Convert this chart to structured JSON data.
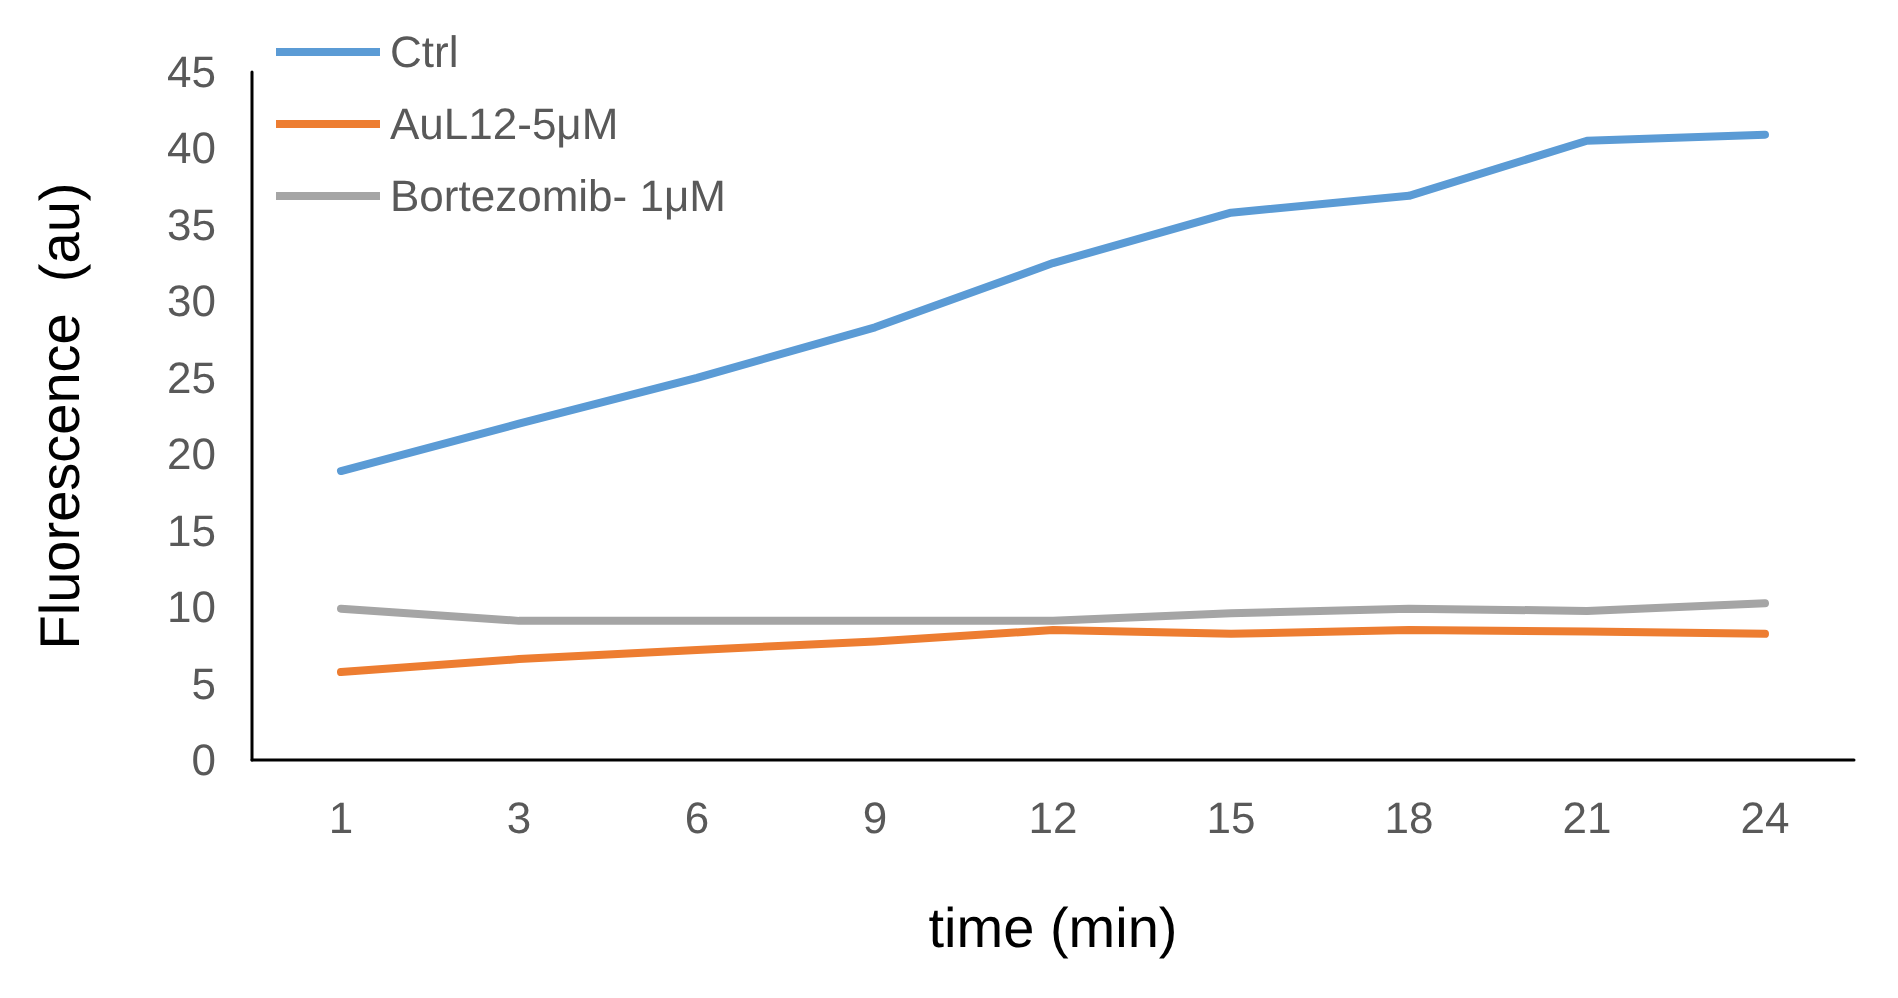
{
  "chart_data": {
    "type": "line",
    "xlabel": "time (min)",
    "ylabel": "Fluorescence  (au)",
    "categories": [
      "1",
      "3",
      "6",
      "9",
      "12",
      "15",
      "18",
      "21",
      "24"
    ],
    "series": [
      {
        "name": "Ctrl",
        "color": "#5b9bd5",
        "values": [
          18.9,
          22,
          25,
          28.3,
          32.5,
          35.8,
          36.9,
          40.5,
          40.9
        ]
      },
      {
        "name": "AuL12-5μM",
        "color": "#ed7d31",
        "values": [
          5.75,
          6.6,
          7.2,
          7.75,
          8.5,
          8.25,
          8.5,
          8.4,
          8.25
        ]
      },
      {
        "name": "Bortezomib- 1μM",
        "color": "#a5a5a5",
        "values": [
          9.9,
          9.1,
          9.1,
          9.1,
          9.1,
          9.6,
          9.9,
          9.75,
          10.25
        ]
      }
    ],
    "ylim": [
      0,
      45
    ],
    "yticks": [
      0,
      5,
      10,
      15,
      20,
      25,
      30,
      35,
      40,
      45
    ],
    "grid": false,
    "legend": "top left",
    "marker": "none",
    "line_style": "solid"
  }
}
